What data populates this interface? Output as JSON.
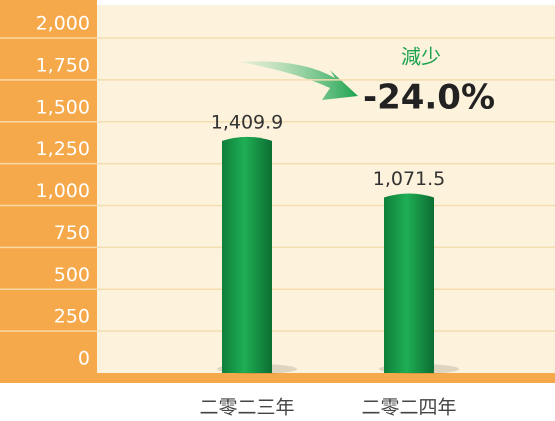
{
  "chart_data": {
    "type": "bar",
    "categories": [
      "二零二三年",
      "二零二四年"
    ],
    "values": [
      1409.9,
      1071.5
    ],
    "value_labels": [
      "1,409.9",
      "1,071.5"
    ],
    "color": "#169447",
    "ylim": [
      0,
      2000
    ],
    "yticks": [
      0,
      250,
      500,
      750,
      {
        "value": 1000,
        "label": "1,000"
      },
      {
        "value": 1250,
        "label": "1,250"
      },
      {
        "value": 1500,
        "label": "1,500"
      },
      {
        "value": 1750,
        "label": "1,750"
      },
      {
        "value": 2000,
        "label": "2,000"
      }
    ],
    "grid": true,
    "annotations": [
      "減少",
      "-24.0%"
    ]
  }
}
